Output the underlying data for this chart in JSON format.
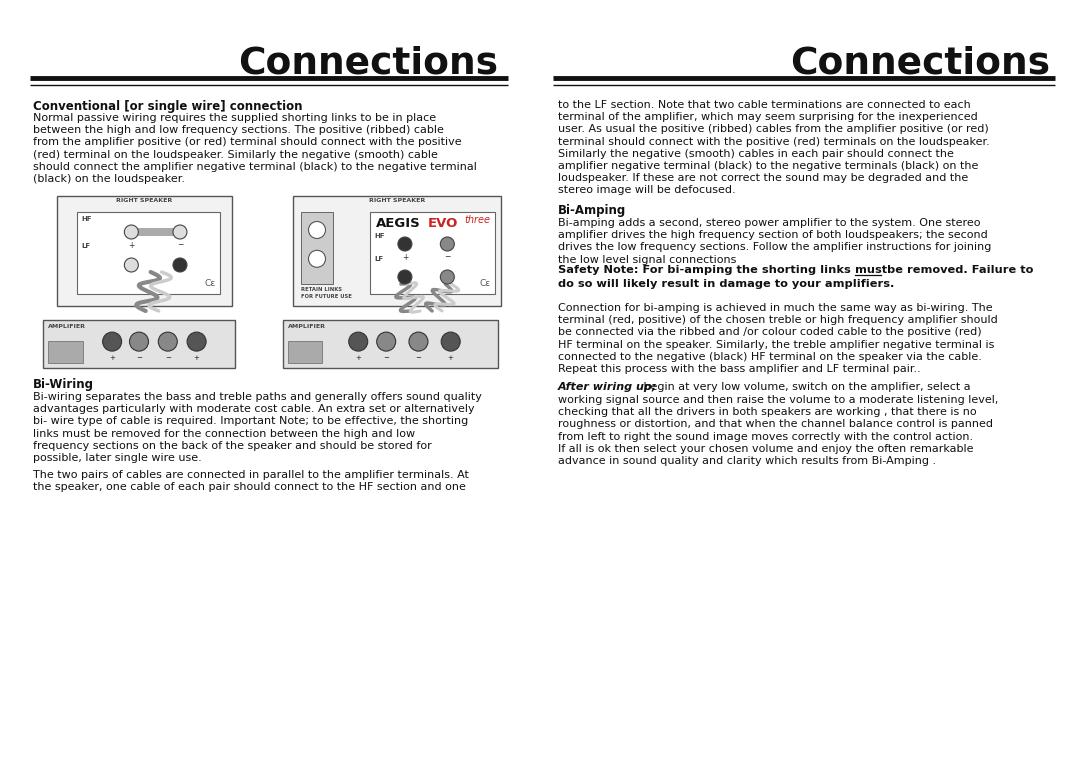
{
  "bg_color": "#FFFFFF",
  "title_color": "#111111",
  "text_color": "#111111",
  "left_title": "Connections",
  "right_title": "Connections",
  "section1_heading": "Conventional [or single wire] connection",
  "section1_body": "Normal passive wiring requires the supplied shorting links to be in place\nbetween the high and low frequency sections. The positive (ribbed) cable\nfrom the amplifier positive (or red) terminal should connect with the positive\n(red) terminal on the loudspeaker. Similarly the negative (smooth) cable\nshould connect the amplifier negative terminal (black) to the negative terminal\n(black) on the loudspeaker.",
  "right_col_top": "to the LF section. Note that two cable terminations are connected to each\nterminal of the amplifier, which may seem surprising for the inexperienced\nuser. As usual the positive (ribbed) cables from the amplifier positive (or red)\nterminal should connect with the positive (red) terminals on the loudspeaker.\nSimilarly the negative (smooth) cables in each pair should connect the\namplifier negative terminal (black) to the negative terminals (black) on the\nloudspeaker. If these are not correct the sound may be degraded and the\nstereo image will be defocused.",
  "bi_amping_heading": "Bi-Amping",
  "bi_amping_body": "Bi-amping adds a second, stereo power amplifier to the system. One stereo\namplifier drives the high frequency section of both loudspeakers; the second\ndrives the low frequency sections. Follow the amplifier instructions for joining\nthe low level signal connections",
  "safety_note_pre": "Safety Note: For bi-amping the shorting links ",
  "safety_note_must": "must",
  "safety_note_post": " be removed. Failure to",
  "safety_note_line2": "do so will likely result in damage to your amplifiers.",
  "bi_amping_body2": "Connection for bi-amping is achieved in much the same way as bi-wiring. The\nterminal (red, positive) of the chosen treble or high frequency amplifier should\nbe connected via the ribbed and /or colour coded cable to the positive (red)\nHF terminal on the speaker. Similarly, the treble amplifier negative terminal is\nconnected to the negative (black) HF terminal on the speaker via the cable.\nRepeat this process with the bass amplifier and LF terminal pair..",
  "after_wiring_italic": "After wiring up;",
  "after_wiring_line1_rest": " begin at very low volume, switch on the amplifier, select a",
  "after_wiring_rest": "working signal source and then raise the volume to a moderate listening level,\nchecking that all the drivers in both speakers are working , that there is no\nroughness or distortion, and that when the channel balance control is panned\nfrom left to right the sound image moves correctly with the control action.\nIf all is ok then select your chosen volume and enjoy the often remarkable\nadvance in sound quality and clarity which results from Bi-Amping .",
  "bi_wiring_heading": "Bi-Wiring",
  "bi_wiring_body": "Bi-wiring separates the bass and treble paths and generally offers sound quality\nadvantages particularly with moderate cost cable. An extra set or alternatively\nbi- wire type of cable is required. Important Note; to be effective, the shorting\nlinks must be removed for the connection between the high and low\nfrequency sections on the back of the speaker and should be stored for\npossible, later single wire use.",
  "bi_wiring_body2": "The two pairs of cables are connected in parallel to the amplifier terminals. At\nthe speaker, one cable of each pair should connect to the HF section and one"
}
